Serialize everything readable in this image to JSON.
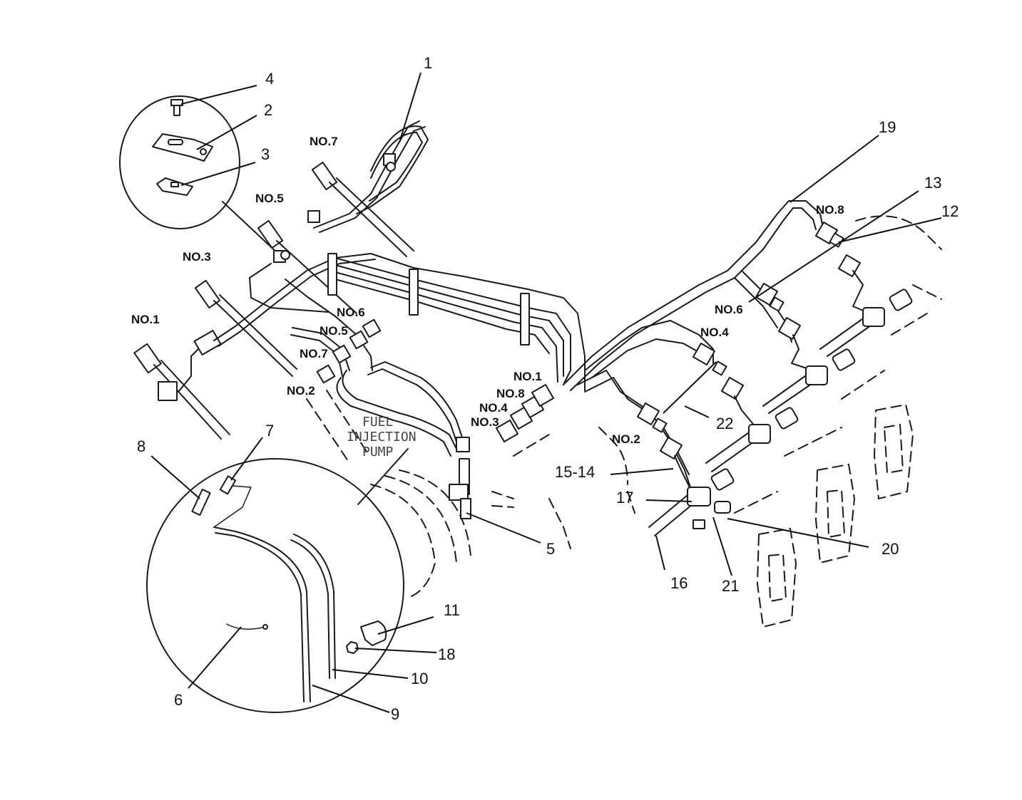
{
  "callouts": [
    "1",
    "2",
    "3",
    "4",
    "5",
    "6",
    "7",
    "8",
    "9",
    "10",
    "11",
    "12",
    "13",
    "15-14",
    "16",
    "17",
    "18",
    "19",
    "20",
    "21",
    "22"
  ],
  "cylinder_labels": {
    "top_no7": "NO.7",
    "top_no5": "NO.5",
    "top_no3": "NO.3",
    "top_no1": "NO.1",
    "pump_no6": "NO.6",
    "pump_no5": "NO.5",
    "pump_no7": "NO.7",
    "pump_no2": "NO.2",
    "pump_no1": "NO.1",
    "pump_no8": "NO.8",
    "pump_no4": "NO.4",
    "pump_no3": "NO.3",
    "right_no8": "NO.8",
    "right_no6": "NO.6",
    "right_no4": "NO.4",
    "right_no2": "NO.2"
  },
  "pump_label": [
    "FUEL",
    "INJECTION",
    "PUMP"
  ]
}
